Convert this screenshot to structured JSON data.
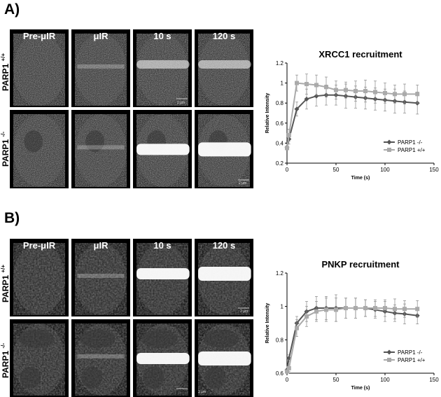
{
  "figure": {
    "panels": [
      {
        "letter": "A)",
        "columns": [
          "Pre-μIR",
          "μIR",
          "10 s",
          "120 s"
        ],
        "rows": [
          {
            "label": "PARP1",
            "sup": "+/+"
          },
          {
            "label": "PARP1",
            "sup": "-/-"
          }
        ],
        "scale_label": "2 μm",
        "chart_title": "XRCC1 recruitment"
      },
      {
        "letter": "B)",
        "columns": [
          "Pre-μIR",
          "μIR",
          "10 s",
          "120 s"
        ],
        "rows": [
          {
            "label": "PARP1",
            "sup": "+/+"
          },
          {
            "label": "PARP1",
            "sup": "-/-"
          }
        ],
        "scale_label": "2 μm",
        "chart_title": "PNKP recruitment"
      }
    ]
  },
  "chart_data": [
    {
      "type": "line",
      "title": "XRCC1 recruitment",
      "xlabel": "Time (s)",
      "ylabel": "Relative Intensity",
      "xlim": [
        0,
        150
      ],
      "ylim": [
        0.2,
        1.2
      ],
      "xticks": [
        0,
        50,
        100,
        150
      ],
      "yticks": [
        0.2,
        0.4,
        0.6,
        0.8,
        1,
        1.2
      ],
      "legend_position": "bottom-right",
      "grid": false,
      "series": [
        {
          "name": "PARP1 -/-",
          "color": "#555555",
          "marker": "diamond",
          "x": [
            0,
            2,
            10,
            20,
            30,
            40,
            50,
            60,
            70,
            80,
            90,
            100,
            110,
            120,
            133
          ],
          "y": [
            0.36,
            0.44,
            0.74,
            0.84,
            0.87,
            0.88,
            0.88,
            0.87,
            0.86,
            0.85,
            0.84,
            0.83,
            0.82,
            0.81,
            0.8
          ],
          "error": [
            0,
            0.05,
            0.07,
            0.1,
            0.1,
            0.1,
            0.1,
            0.12,
            0.11,
            0.11,
            0.11,
            0.11,
            0.12,
            0.11,
            0.11
          ]
        },
        {
          "name": "PARP1 +/+",
          "color": "#aaaaaa",
          "marker": "square",
          "x": [
            0,
            2,
            10,
            20,
            30,
            40,
            50,
            60,
            70,
            80,
            90,
            100,
            110,
            120,
            133
          ],
          "y": [
            0.35,
            0.48,
            1.0,
            0.99,
            0.98,
            0.96,
            0.93,
            0.93,
            0.92,
            0.92,
            0.91,
            0.9,
            0.89,
            0.89,
            0.89
          ],
          "error": [
            0,
            0.06,
            0.08,
            0.1,
            0.1,
            0.1,
            0.09,
            0.08,
            0.1,
            0.11,
            0.11,
            0.1,
            0.09,
            0.1,
            0.09
          ]
        }
      ]
    },
    {
      "type": "line",
      "title": "PNKP recruitment",
      "xlabel": "Time (s)",
      "ylabel": "Relative Intensity",
      "xlim": [
        0,
        150
      ],
      "ylim": [
        0.6,
        1.2
      ],
      "xticks": [
        0,
        50,
        100,
        150
      ],
      "yticks": [
        0.6,
        0.8,
        1,
        1.2
      ],
      "legend_position": "bottom-right",
      "grid": false,
      "series": [
        {
          "name": "PARP1 -/-",
          "color": "#555555",
          "marker": "diamond",
          "x": [
            0,
            2,
            10,
            20,
            30,
            40,
            50,
            60,
            70,
            80,
            90,
            100,
            110,
            120,
            133
          ],
          "y": [
            0.62,
            0.69,
            0.9,
            0.97,
            0.99,
            0.99,
            0.99,
            0.99,
            0.99,
            0.99,
            0.98,
            0.97,
            0.96,
            0.955,
            0.945
          ],
          "error": [
            0,
            0.02,
            0.04,
            0.06,
            0.07,
            0.07,
            0.08,
            0.06,
            0.06,
            0.05,
            0.05,
            0.06,
            0.05,
            0.06,
            0.05
          ]
        },
        {
          "name": "PARP1 +/+",
          "color": "#aaaaaa",
          "marker": "square",
          "x": [
            0,
            2,
            10,
            20,
            30,
            40,
            50,
            60,
            70,
            80,
            90,
            100,
            110,
            120,
            133
          ],
          "y": [
            0.61,
            0.63,
            0.87,
            0.94,
            0.97,
            0.98,
            0.98,
            0.99,
            0.99,
            0.99,
            0.99,
            0.99,
            0.985,
            0.985,
            0.985
          ],
          "error": [
            0,
            0.02,
            0.05,
            0.06,
            0.06,
            0.07,
            0.07,
            0.06,
            0.06,
            0.05,
            0.05,
            0.05,
            0.06,
            0.05,
            0.05
          ]
        }
      ]
    }
  ]
}
